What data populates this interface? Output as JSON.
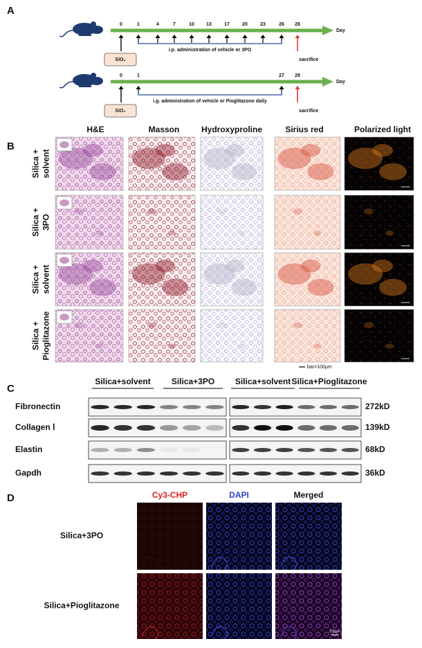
{
  "panel_a": {
    "label": "A",
    "timelines": [
      {
        "days": [
          0,
          1,
          4,
          7,
          10,
          13,
          17,
          20,
          23,
          26,
          28
        ],
        "unit": "Day",
        "agent": "SiO₂",
        "treatment": "i.p. administration of vehicle or 3PO",
        "endpoint": "sacrifice"
      },
      {
        "days": [
          0,
          1,
          27,
          28
        ],
        "unit": "Day",
        "agent": "SiO₂",
        "treatment": "i.g. administration of vehicle or Pioglitazone daily",
        "endpoint": "sacrifice"
      }
    ]
  },
  "panel_b": {
    "label": "B",
    "columns": [
      "H&E",
      "Masson",
      "Hydroxyproline",
      "Sirius red",
      "Polarized light"
    ],
    "rows": [
      [
        "Silica +",
        "solvent"
      ],
      [
        "Silica +",
        "3PO"
      ],
      [
        "Silica +",
        "solvent"
      ],
      [
        "Silica +",
        "Pioglitazone"
      ]
    ],
    "scale_bar": "bar=100μm"
  },
  "panel_c": {
    "label": "C",
    "groups": [
      "Silica+solvent",
      "Silica+3PO",
      "Silica+solvent",
      "Silica+Pioglitazone"
    ],
    "proteins": [
      {
        "name": "Fibronectin",
        "size": "272kD"
      },
      {
        "name": "Collagen Ⅰ",
        "size": "139kD"
      },
      {
        "name": "Elastin",
        "size": "68kD"
      },
      {
        "name": "Gapdh",
        "size": "36kD"
      }
    ]
  },
  "panel_d": {
    "label": "D",
    "columns": [
      "Cy3-CHP",
      "DAPI",
      "Merged"
    ],
    "rows": [
      "Silica+3PO",
      "Silica+Pioglitazone"
    ],
    "scale_bar": "100μm"
  }
}
